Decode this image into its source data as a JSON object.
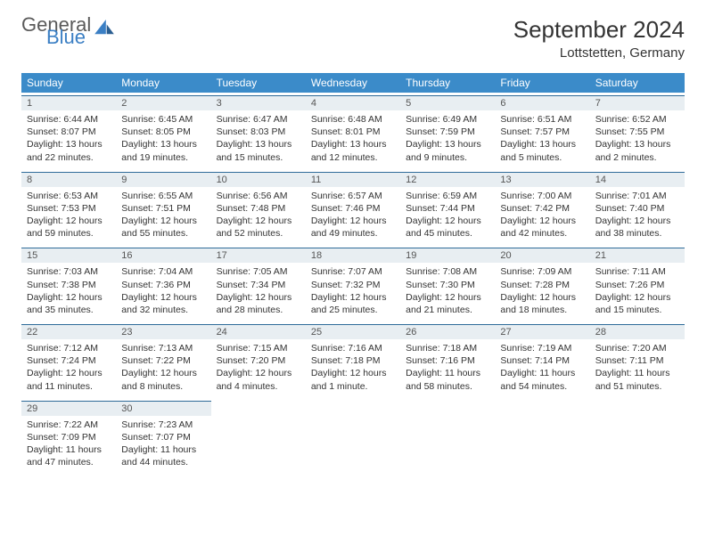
{
  "brand": {
    "word1": "General",
    "word2": "Blue",
    "accent_color": "#3b7fc4",
    "muted_color": "#5a5a5a"
  },
  "title": "September 2024",
  "location": "Lottstetten, Germany",
  "header_bg": "#3b8bc9",
  "daynum_bg": "#e8eef2",
  "border_color": "#2f6b99",
  "day_names": [
    "Sunday",
    "Monday",
    "Tuesday",
    "Wednesday",
    "Thursday",
    "Friday",
    "Saturday"
  ],
  "weeks": [
    [
      {
        "n": "1",
        "sr": "6:44 AM",
        "ss": "8:07 PM",
        "dl": "13 hours and 22 minutes."
      },
      {
        "n": "2",
        "sr": "6:45 AM",
        "ss": "8:05 PM",
        "dl": "13 hours and 19 minutes."
      },
      {
        "n": "3",
        "sr": "6:47 AM",
        "ss": "8:03 PM",
        "dl": "13 hours and 15 minutes."
      },
      {
        "n": "4",
        "sr": "6:48 AM",
        "ss": "8:01 PM",
        "dl": "13 hours and 12 minutes."
      },
      {
        "n": "5",
        "sr": "6:49 AM",
        "ss": "7:59 PM",
        "dl": "13 hours and 9 minutes."
      },
      {
        "n": "6",
        "sr": "6:51 AM",
        "ss": "7:57 PM",
        "dl": "13 hours and 5 minutes."
      },
      {
        "n": "7",
        "sr": "6:52 AM",
        "ss": "7:55 PM",
        "dl": "13 hours and 2 minutes."
      }
    ],
    [
      {
        "n": "8",
        "sr": "6:53 AM",
        "ss": "7:53 PM",
        "dl": "12 hours and 59 minutes."
      },
      {
        "n": "9",
        "sr": "6:55 AM",
        "ss": "7:51 PM",
        "dl": "12 hours and 55 minutes."
      },
      {
        "n": "10",
        "sr": "6:56 AM",
        "ss": "7:48 PM",
        "dl": "12 hours and 52 minutes."
      },
      {
        "n": "11",
        "sr": "6:57 AM",
        "ss": "7:46 PM",
        "dl": "12 hours and 49 minutes."
      },
      {
        "n": "12",
        "sr": "6:59 AM",
        "ss": "7:44 PM",
        "dl": "12 hours and 45 minutes."
      },
      {
        "n": "13",
        "sr": "7:00 AM",
        "ss": "7:42 PM",
        "dl": "12 hours and 42 minutes."
      },
      {
        "n": "14",
        "sr": "7:01 AM",
        "ss": "7:40 PM",
        "dl": "12 hours and 38 minutes."
      }
    ],
    [
      {
        "n": "15",
        "sr": "7:03 AM",
        "ss": "7:38 PM",
        "dl": "12 hours and 35 minutes."
      },
      {
        "n": "16",
        "sr": "7:04 AM",
        "ss": "7:36 PM",
        "dl": "12 hours and 32 minutes."
      },
      {
        "n": "17",
        "sr": "7:05 AM",
        "ss": "7:34 PM",
        "dl": "12 hours and 28 minutes."
      },
      {
        "n": "18",
        "sr": "7:07 AM",
        "ss": "7:32 PM",
        "dl": "12 hours and 25 minutes."
      },
      {
        "n": "19",
        "sr": "7:08 AM",
        "ss": "7:30 PM",
        "dl": "12 hours and 21 minutes."
      },
      {
        "n": "20",
        "sr": "7:09 AM",
        "ss": "7:28 PM",
        "dl": "12 hours and 18 minutes."
      },
      {
        "n": "21",
        "sr": "7:11 AM",
        "ss": "7:26 PM",
        "dl": "12 hours and 15 minutes."
      }
    ],
    [
      {
        "n": "22",
        "sr": "7:12 AM",
        "ss": "7:24 PM",
        "dl": "12 hours and 11 minutes."
      },
      {
        "n": "23",
        "sr": "7:13 AM",
        "ss": "7:22 PM",
        "dl": "12 hours and 8 minutes."
      },
      {
        "n": "24",
        "sr": "7:15 AM",
        "ss": "7:20 PM",
        "dl": "12 hours and 4 minutes."
      },
      {
        "n": "25",
        "sr": "7:16 AM",
        "ss": "7:18 PM",
        "dl": "12 hours and 1 minute."
      },
      {
        "n": "26",
        "sr": "7:18 AM",
        "ss": "7:16 PM",
        "dl": "11 hours and 58 minutes."
      },
      {
        "n": "27",
        "sr": "7:19 AM",
        "ss": "7:14 PM",
        "dl": "11 hours and 54 minutes."
      },
      {
        "n": "28",
        "sr": "7:20 AM",
        "ss": "7:11 PM",
        "dl": "11 hours and 51 minutes."
      }
    ],
    [
      {
        "n": "29",
        "sr": "7:22 AM",
        "ss": "7:09 PM",
        "dl": "11 hours and 47 minutes."
      },
      {
        "n": "30",
        "sr": "7:23 AM",
        "ss": "7:07 PM",
        "dl": "11 hours and 44 minutes."
      },
      null,
      null,
      null,
      null,
      null
    ]
  ],
  "labels": {
    "sunrise": "Sunrise:",
    "sunset": "Sunset:",
    "daylight": "Daylight:"
  }
}
